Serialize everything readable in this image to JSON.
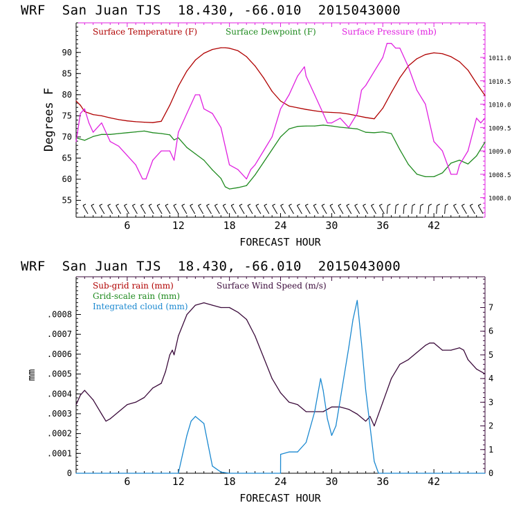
{
  "titles": {
    "top": "WRF  San Juan TJS  18.430, -66.010  2015043000",
    "bottom": "WRF  San Juan TJS  18.430, -66.010  2015043000"
  },
  "colors": {
    "temperature": "#b00000",
    "dewpoint": "#1e8a1e",
    "pressure": "#e020e0",
    "subgrid_rain": "#b00000",
    "wind": "#3a0a3a",
    "gridscale_rain": "#1e8a1e",
    "cloud": "#1a88d0",
    "axis_left": "#000000",
    "axis_right_top": "#e020e0",
    "axis_right_bottom": "#3a0a3a"
  },
  "chart_data": [
    {
      "type": "line",
      "title": "WRF  San Juan TJS  18.430, -66.010  2015043000",
      "xlabel": "FORECAST HOUR",
      "ylabel": "Degrees F",
      "xlim": [
        0,
        48
      ],
      "ylim": [
        51,
        97
      ],
      "xticks": [
        "6",
        "12",
        "18",
        "24",
        "30",
        "36",
        "42"
      ],
      "xtick_values": [
        6,
        12,
        18,
        24,
        30,
        36,
        42
      ],
      "yticks": [
        "55",
        "60",
        "65",
        "70",
        "75",
        "80",
        "85",
        "90"
      ],
      "ytick_values": [
        55,
        60,
        65,
        70,
        75,
        80,
        85,
        90
      ],
      "y2label": "",
      "y2lim": [
        1007.58,
        1011.74
      ],
      "y2ticks": [
        "1008.0",
        "1008.5",
        "1009.0",
        "1009.5",
        "1010.0",
        "1010.5",
        "1011.0"
      ],
      "y2tick_values": [
        1008.0,
        1008.5,
        1009.0,
        1009.5,
        1010.0,
        1010.5,
        1011.0
      ],
      "legend": [
        "Surface Temperature (F)",
        "Surface Dewpoint (F)",
        "Surface Pressure (mb)"
      ],
      "wind_barbs": "along bottom edge",
      "series": [
        {
          "name": "Surface Temperature (F)",
          "axis": "left",
          "x": [
            0,
            0.5,
            1,
            2,
            3,
            4,
            5,
            6,
            7,
            8,
            9,
            10,
            11,
            12,
            13,
            14,
            15,
            16,
            17,
            17.5,
            18,
            19,
            20,
            21,
            22,
            23,
            24,
            25,
            26,
            27,
            28,
            29,
            30,
            31,
            32,
            33,
            34,
            35,
            36,
            37,
            38,
            39,
            40,
            41,
            42,
            43,
            44,
            45,
            46,
            47,
            48
          ],
          "values": [
            78.5,
            77.5,
            76,
            75.3,
            75,
            74.5,
            74.1,
            73.8,
            73.6,
            73.5,
            73.4,
            73.7,
            77.5,
            82,
            85.6,
            88.2,
            89.8,
            90.7,
            91.1,
            91.1,
            91,
            90.4,
            89,
            86.8,
            84,
            80.8,
            78.5,
            77.3,
            76.9,
            76.5,
            76.2,
            75.9,
            75.8,
            75.7,
            75.4,
            75,
            74.6,
            74.3,
            76.8,
            80.5,
            84,
            86.8,
            88.5,
            89.5,
            89.9,
            89.7,
            89,
            87.8,
            85.8,
            82.7,
            79.8
          ]
        },
        {
          "name": "Surface Dewpoint (F)",
          "axis": "left",
          "x": [
            0,
            1,
            2,
            3,
            4,
            5,
            6,
            7,
            8,
            9,
            10,
            11,
            11.5,
            12,
            13,
            14,
            15,
            16,
            17,
            17.5,
            18,
            19,
            20,
            21,
            22,
            23,
            24,
            25,
            26,
            27,
            28,
            29,
            30,
            31,
            32,
            33,
            34,
            35,
            36,
            37,
            38,
            39,
            40,
            41,
            42,
            43,
            44,
            45,
            46,
            47,
            48
          ],
          "values": [
            69.8,
            69.2,
            70.1,
            70.6,
            70.6,
            70.8,
            71,
            71.2,
            71.4,
            71,
            70.8,
            70.5,
            69.3,
            69.8,
            67.5,
            66,
            64.5,
            62.2,
            60.2,
            58.2,
            57.7,
            58,
            58.5,
            61,
            64,
            67,
            70,
            71.9,
            72.5,
            72.6,
            72.6,
            72.8,
            72.6,
            72.3,
            72.1,
            71.9,
            71.1,
            71,
            71.2,
            70.8,
            67,
            63.5,
            61.2,
            60.6,
            60.6,
            61.5,
            63.8,
            64.5,
            63.6,
            65.5,
            68.8
          ]
        },
        {
          "name": "Surface Pressure (mb)",
          "axis": "right",
          "x": [
            0,
            0.5,
            1,
            1.5,
            2,
            3,
            4,
            5,
            6,
            7,
            7.8,
            8.2,
            9,
            10,
            11,
            11.5,
            12,
            13,
            14,
            14.5,
            15,
            16,
            17,
            18,
            19,
            20,
            20.5,
            21,
            22,
            23,
            24,
            25,
            26,
            26.8,
            27,
            28,
            29,
            29.5,
            30,
            31,
            32,
            33,
            33.5,
            34,
            35,
            36,
            36.5,
            37,
            37.5,
            38,
            39,
            40,
            41,
            42,
            43,
            44,
            44.7,
            45,
            46,
            47,
            47.5,
            48
          ],
          "values": [
            1009.2,
            1009.8,
            1009.9,
            1009.6,
            1009.4,
            1009.6,
            1009.2,
            1009.1,
            1008.9,
            1008.7,
            1008.4,
            1008.4,
            1008.8,
            1009.0,
            1009.0,
            1008.8,
            1009.4,
            1009.8,
            1010.2,
            1010.2,
            1009.9,
            1009.8,
            1009.5,
            1008.7,
            1008.6,
            1008.4,
            1008.6,
            1008.7,
            1009.0,
            1009.3,
            1009.9,
            1010.2,
            1010.6,
            1010.8,
            1010.6,
            1010.2,
            1009.8,
            1009.6,
            1009.6,
            1009.7,
            1009.5,
            1009.8,
            1010.3,
            1010.4,
            1010.7,
            1011.0,
            1011.3,
            1011.3,
            1011.2,
            1011.2,
            1010.8,
            1010.3,
            1010.0,
            1009.2,
            1009.0,
            1008.5,
            1008.5,
            1008.7,
            1009.0,
            1009.7,
            1009.6,
            1009.7
          ]
        }
      ]
    },
    {
      "type": "line",
      "title": "WRF  San Juan TJS  18.430, -66.010  2015043000",
      "xlabel": "FORECAST HOUR",
      "ylabel": "mm",
      "xlim": [
        0,
        48
      ],
      "ylim": [
        0,
        0.00099
      ],
      "xticks": [
        "6",
        "12",
        "18",
        "24",
        "30",
        "36",
        "42"
      ],
      "xtick_values": [
        6,
        12,
        18,
        24,
        30,
        36,
        42
      ],
      "yticks": [
        "0",
        ".0001",
        ".0002",
        ".0003",
        ".0004",
        ".0005",
        ".0006",
        ".0007",
        ".0008"
      ],
      "ytick_values": [
        0,
        0.0001,
        0.0002,
        0.0003,
        0.0004,
        0.0005,
        0.0006,
        0.0007,
        0.0008
      ],
      "y2label": "",
      "y2lim": [
        0,
        8.3
      ],
      "y2ticks": [
        "0",
        "1",
        "2",
        "3",
        "4",
        "5",
        "6",
        "7"
      ],
      "y2tick_values": [
        0,
        1,
        2,
        3,
        4,
        5,
        6,
        7
      ],
      "legend": [
        "Sub-grid rain (mm)",
        "Surface Wind Speed (m/s)",
        "Grid-scale rain (mm)",
        "Integrated cloud (mm)"
      ],
      "series": [
        {
          "name": "Surface Wind Speed (m/s)",
          "axis": "right",
          "x": [
            0,
            0.5,
            1,
            2,
            3,
            3.5,
            4,
            5,
            6,
            7,
            8,
            9,
            10,
            10.5,
            11,
            11.3,
            11.5,
            12,
            13,
            14,
            15,
            16,
            17,
            18,
            19,
            20,
            21,
            22,
            23,
            24,
            25,
            26,
            27,
            28,
            29,
            30,
            31,
            32,
            33,
            34,
            34.5,
            35,
            36,
            37,
            38,
            39,
            40,
            41,
            41.5,
            42,
            43,
            44,
            45,
            45.5,
            46,
            47,
            48
          ],
          "values": [
            2.9,
            3.3,
            3.5,
            3.1,
            2.5,
            2.2,
            2.3,
            2.6,
            2.9,
            3.0,
            3.2,
            3.6,
            3.8,
            4.3,
            5.0,
            5.2,
            5.0,
            5.8,
            6.7,
            7.1,
            7.2,
            7.1,
            7.0,
            7.0,
            6.8,
            6.5,
            5.8,
            4.9,
            4.0,
            3.4,
            3.0,
            2.9,
            2.6,
            2.6,
            2.6,
            2.8,
            2.8,
            2.7,
            2.5,
            2.2,
            2.4,
            2.0,
            3.0,
            4.0,
            4.6,
            4.8,
            5.1,
            5.4,
            5.5,
            5.5,
            5.2,
            5.2,
            5.3,
            5.2,
            4.8,
            4.4,
            4.2
          ]
        },
        {
          "name": "Integrated cloud (mm)",
          "axis": "right",
          "x": [
            0,
            12,
            12.5,
            13,
            13.5,
            14,
            15,
            15.5,
            16,
            17,
            18,
            24,
            24.01,
            25,
            26,
            27,
            28,
            28.7,
            29,
            29.5,
            30,
            30.5,
            31,
            32,
            32.5,
            33,
            33.5,
            34,
            35,
            35.5,
            48
          ],
          "values": [
            0,
            0,
            0.8,
            1.6,
            2.2,
            2.4,
            2.1,
            1.2,
            0.3,
            0.05,
            0,
            0,
            0.8,
            0.9,
            0.9,
            1.3,
            2.6,
            4.0,
            3.5,
            2.3,
            1.6,
            2.0,
            3.1,
            5.3,
            6.5,
            7.3,
            5.5,
            3.5,
            0.5,
            0,
            0
          ]
        }
      ]
    }
  ]
}
